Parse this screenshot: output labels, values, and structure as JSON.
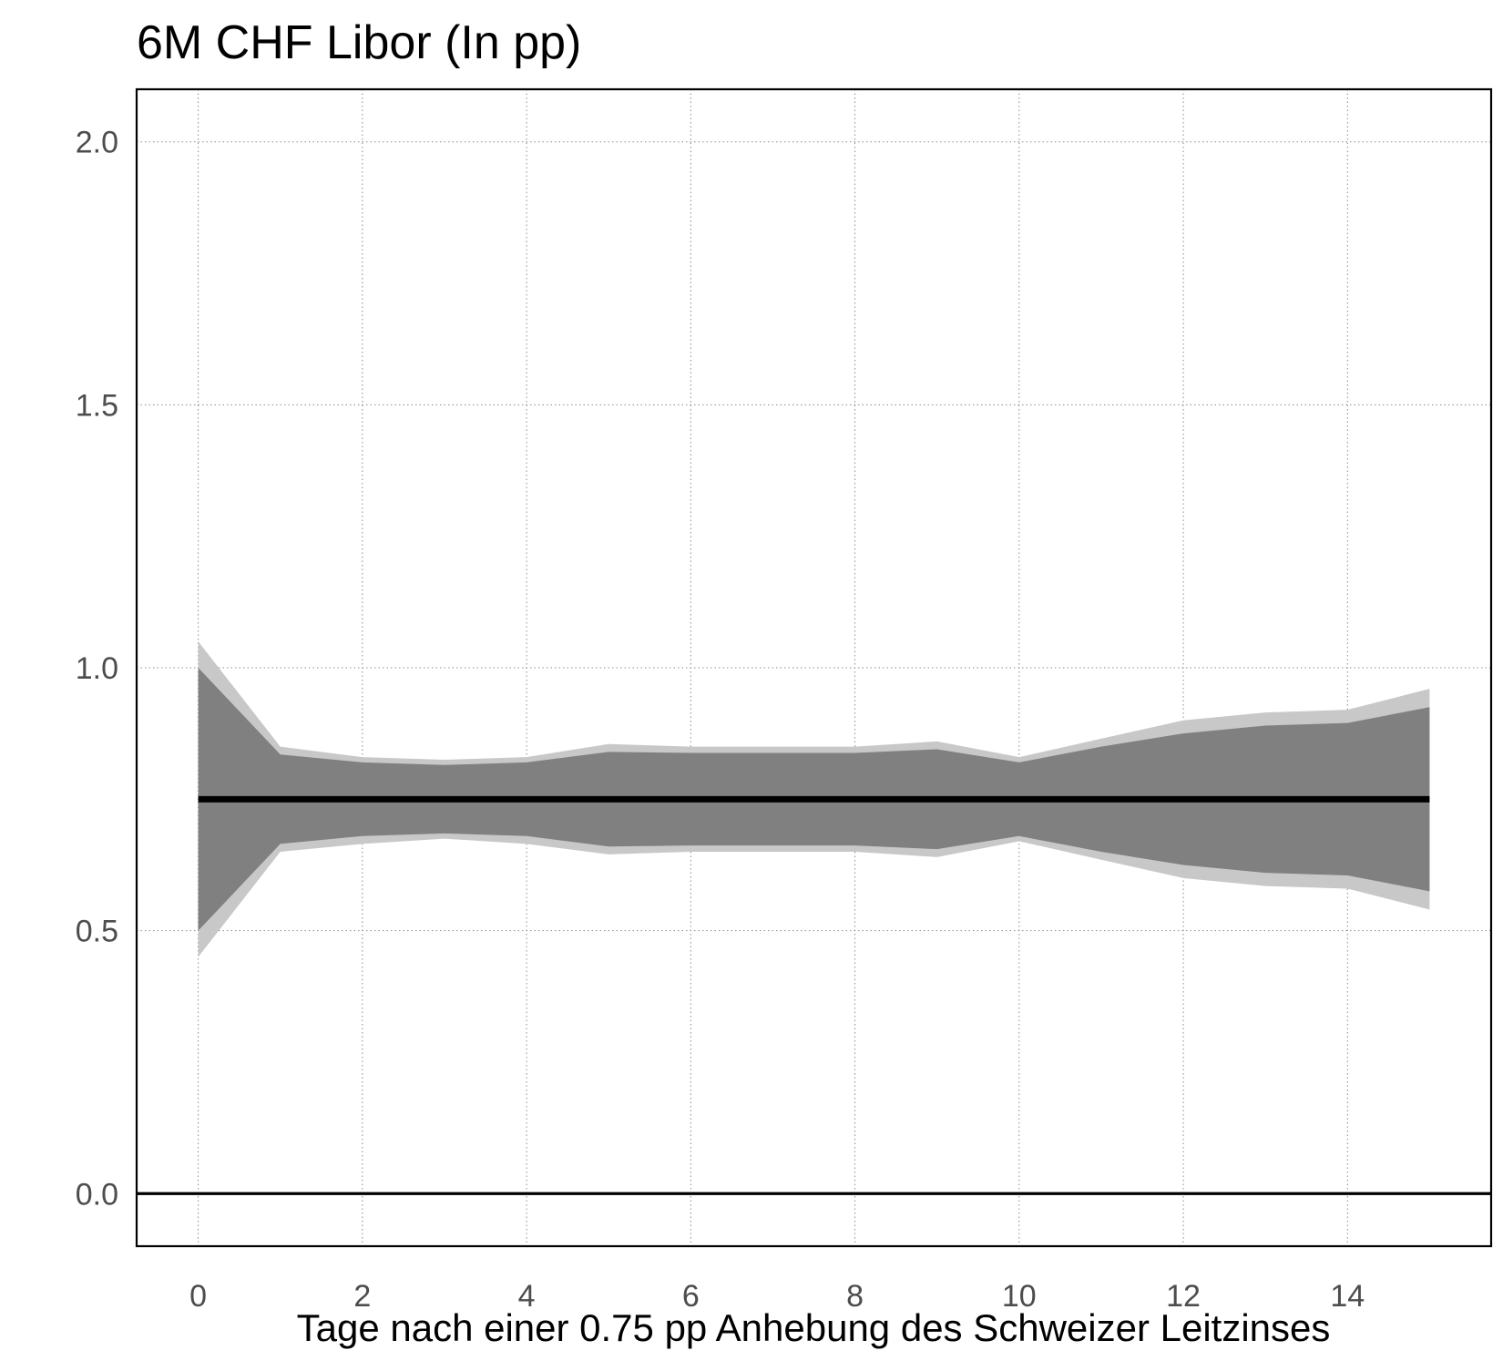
{
  "chart_data": {
    "type": "area",
    "title": "6M CHF Libor (In pp)",
    "xlabel": "Tage nach einer 0.75 pp Anhebung des Schweizer Leitzinses",
    "ylabel": "",
    "xlim": [
      -0.75,
      15.75
    ],
    "ylim": [
      -0.1,
      2.1
    ],
    "x_ticks": [
      0,
      2,
      4,
      6,
      8,
      10,
      12,
      14
    ],
    "x_tick_labels": [
      "0",
      "2",
      "4",
      "6",
      "8",
      "10",
      "12",
      "14"
    ],
    "y_ticks": [
      0.0,
      0.5,
      1.0,
      1.5,
      2.0
    ],
    "y_tick_labels": [
      "0.0",
      "0.5",
      "1.0",
      "1.5",
      "2.0"
    ],
    "grid": true,
    "x": [
      0,
      1,
      2,
      3,
      4,
      5,
      6,
      7,
      8,
      9,
      10,
      11,
      12,
      13,
      14,
      15
    ],
    "bands": [
      {
        "level": "outer",
        "color": "#c8c8c8",
        "upper": [
          1.05,
          0.85,
          0.83,
          0.825,
          0.83,
          0.855,
          0.85,
          0.85,
          0.85,
          0.86,
          0.83,
          0.865,
          0.9,
          0.915,
          0.92,
          0.96
        ],
        "lower": [
          0.45,
          0.65,
          0.665,
          0.675,
          0.665,
          0.645,
          0.65,
          0.65,
          0.65,
          0.64,
          0.67,
          0.635,
          0.6,
          0.585,
          0.58,
          0.54
        ]
      },
      {
        "level": "inner",
        "color": "#808080",
        "upper": [
          1.0,
          0.835,
          0.82,
          0.815,
          0.82,
          0.84,
          0.838,
          0.838,
          0.838,
          0.845,
          0.82,
          0.85,
          0.875,
          0.89,
          0.895,
          0.925
        ]
      },
      {
        "level": "inner-lower",
        "color": "#808080",
        "lower": [
          0.5,
          0.665,
          0.68,
          0.685,
          0.68,
          0.66,
          0.662,
          0.662,
          0.662,
          0.655,
          0.68,
          0.65,
          0.625,
          0.61,
          0.605,
          0.575
        ]
      }
    ],
    "series": [
      {
        "values": [
          0.75,
          0.75,
          0.75,
          0.75,
          0.75,
          0.75,
          0.75,
          0.75,
          0.75,
          0.75,
          0.75,
          0.75,
          0.75,
          0.75,
          0.75,
          0.75
        ],
        "color": "#000000"
      }
    ],
    "reference_line": {
      "y": 0.0,
      "color": "#000000"
    }
  }
}
